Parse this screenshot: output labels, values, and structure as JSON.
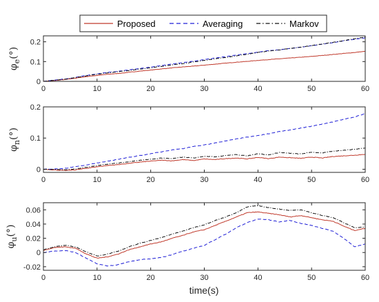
{
  "chart_data": {
    "type": "line",
    "legend": {
      "placement": "top-center",
      "entries": [
        {
          "name": "Proposed",
          "color": "#c0392b",
          "dash": "solid"
        },
        {
          "name": "Averaging",
          "color": "#1f1fd6",
          "dash": "dashed"
        },
        {
          "name": "Markov",
          "color": "#111111",
          "dash": "dashdot"
        }
      ]
    },
    "xlabel": "time(s)",
    "xlim": [
      0,
      60
    ],
    "xticks": [
      0,
      10,
      20,
      30,
      40,
      50,
      60
    ],
    "subplots": [
      {
        "ylabel_main": "φ",
        "ylabel_sub": "e",
        "ylabel_unit": "(°)",
        "ylim": [
          0,
          0.23
        ],
        "yticks": [
          0,
          0.1,
          0.2
        ],
        "ytick_labels": [
          "0",
          "0.1",
          "0.2"
        ],
        "series": [
          {
            "name": "Proposed",
            "x": [
              0,
              2,
              4,
              6,
              8,
              10,
              12,
              14,
              16,
              18,
              20,
              22,
              24,
              26,
              28,
              30,
              32,
              34,
              36,
              38,
              40,
              42,
              44,
              46,
              48,
              50,
              52,
              54,
              56,
              58,
              60
            ],
            "y": [
              0,
              0.004,
              0.009,
              0.016,
              0.024,
              0.03,
              0.036,
              0.04,
              0.046,
              0.052,
              0.057,
              0.063,
              0.068,
              0.073,
              0.077,
              0.082,
              0.087,
              0.092,
              0.097,
              0.101,
              0.106,
              0.11,
              0.114,
              0.118,
              0.122,
              0.126,
              0.131,
              0.136,
              0.141,
              0.146,
              0.152
            ]
          },
          {
            "name": "Averaging",
            "x": [
              0,
              2,
              4,
              6,
              8,
              10,
              12,
              14,
              16,
              18,
              20,
              22,
              24,
              26,
              28,
              30,
              32,
              34,
              36,
              38,
              40,
              42,
              44,
              46,
              48,
              50,
              52,
              54,
              56,
              58,
              60
            ],
            "y": [
              0,
              0.006,
              0.012,
              0.02,
              0.03,
              0.038,
              0.045,
              0.051,
              0.058,
              0.065,
              0.072,
              0.08,
              0.088,
              0.095,
              0.102,
              0.11,
              0.118,
              0.125,
              0.133,
              0.14,
              0.148,
              0.155,
              0.16,
              0.166,
              0.173,
              0.18,
              0.188,
              0.196,
              0.205,
              0.213,
              0.22
            ]
          },
          {
            "name": "Markov",
            "x": [
              0,
              2,
              4,
              6,
              8,
              10,
              12,
              14,
              16,
              18,
              20,
              22,
              24,
              26,
              28,
              30,
              32,
              34,
              36,
              38,
              40,
              42,
              44,
              46,
              48,
              50,
              52,
              54,
              56,
              58,
              60
            ],
            "y": [
              0,
              0.005,
              0.011,
              0.019,
              0.028,
              0.036,
              0.043,
              0.049,
              0.055,
              0.062,
              0.068,
              0.076,
              0.083,
              0.09,
              0.098,
              0.106,
              0.114,
              0.121,
              0.129,
              0.137,
              0.146,
              0.153,
              0.159,
              0.166,
              0.173,
              0.181,
              0.189,
              0.197,
              0.206,
              0.215,
              0.224
            ]
          }
        ]
      },
      {
        "ylabel_main": "φ",
        "ylabel_sub": "n",
        "ylabel_unit": "(°)",
        "ylim": [
          -0.01,
          0.2
        ],
        "yticks": [
          0,
          0.1,
          0.2
        ],
        "ytick_labels": [
          "0",
          "0.1",
          "0.2"
        ],
        "series": [
          {
            "name": "Proposed",
            "x": [
              0,
              2,
              4,
              6,
              8,
              10,
              12,
              14,
              16,
              18,
              20,
              22,
              24,
              26,
              28,
              30,
              32,
              34,
              36,
              38,
              40,
              42,
              44,
              46,
              48,
              50,
              52,
              54,
              56,
              58,
              60
            ],
            "y": [
              0,
              -0.002,
              -0.004,
              -0.002,
              0.003,
              0.008,
              0.012,
              0.015,
              0.019,
              0.023,
              0.026,
              0.029,
              0.027,
              0.031,
              0.028,
              0.033,
              0.031,
              0.034,
              0.036,
              0.033,
              0.038,
              0.034,
              0.039,
              0.037,
              0.035,
              0.039,
              0.036,
              0.041,
              0.043,
              0.045,
              0.048
            ]
          },
          {
            "name": "Averaging",
            "x": [
              0,
              2,
              4,
              6,
              8,
              10,
              12,
              14,
              16,
              18,
              20,
              22,
              24,
              26,
              28,
              30,
              32,
              34,
              36,
              38,
              40,
              42,
              44,
              46,
              48,
              50,
              52,
              54,
              56,
              58,
              60
            ],
            "y": [
              0,
              0.001,
              0.003,
              0.008,
              0.014,
              0.02,
              0.026,
              0.032,
              0.038,
              0.044,
              0.05,
              0.056,
              0.062,
              0.066,
              0.073,
              0.078,
              0.084,
              0.091,
              0.097,
              0.103,
              0.108,
              0.114,
              0.121,
              0.126,
              0.132,
              0.138,
              0.145,
              0.152,
              0.16,
              0.168,
              0.178
            ]
          },
          {
            "name": "Markov",
            "x": [
              0,
              2,
              4,
              6,
              8,
              10,
              12,
              14,
              16,
              18,
              20,
              22,
              24,
              26,
              28,
              30,
              32,
              34,
              36,
              38,
              40,
              42,
              44,
              46,
              48,
              50,
              52,
              54,
              56,
              58,
              60
            ],
            "y": [
              0,
              0,
              -0.002,
              0.001,
              0.006,
              0.012,
              0.016,
              0.02,
              0.024,
              0.029,
              0.032,
              0.036,
              0.034,
              0.039,
              0.036,
              0.042,
              0.04,
              0.044,
              0.047,
              0.043,
              0.05,
              0.046,
              0.054,
              0.051,
              0.049,
              0.055,
              0.052,
              0.058,
              0.061,
              0.064,
              0.068
            ]
          }
        ]
      },
      {
        "ylabel_main": "φ",
        "ylabel_sub": "u",
        "ylabel_unit": "(°)",
        "ylim": [
          -0.025,
          0.07
        ],
        "yticks": [
          -0.02,
          0,
          0.02,
          0.04,
          0.06
        ],
        "ytick_labels": [
          "-0.02",
          "0",
          "0.02",
          "0.04",
          "0.06"
        ],
        "series": [
          {
            "name": "Proposed",
            "x": [
              0,
              2,
              4,
              6,
              8,
              10,
              12,
              14,
              16,
              18,
              20,
              22,
              24,
              26,
              28,
              30,
              32,
              34,
              36,
              38,
              40,
              42,
              44,
              46,
              48,
              50,
              52,
              54,
              56,
              58,
              60
            ],
            "y": [
              0.003,
              0.007,
              0.008,
              0.006,
              -0.002,
              -0.008,
              -0.006,
              -0.002,
              0.004,
              0.008,
              0.012,
              0.015,
              0.02,
              0.024,
              0.029,
              0.032,
              0.038,
              0.044,
              0.05,
              0.056,
              0.057,
              0.055,
              0.053,
              0.05,
              0.052,
              0.049,
              0.046,
              0.044,
              0.037,
              0.031,
              0.034
            ]
          },
          {
            "name": "Averaging",
            "x": [
              0,
              2,
              4,
              6,
              8,
              10,
              12,
              14,
              16,
              18,
              20,
              22,
              24,
              26,
              28,
              30,
              32,
              34,
              36,
              38,
              40,
              42,
              44,
              46,
              48,
              50,
              52,
              54,
              56,
              58,
              60
            ],
            "y": [
              0,
              0.002,
              0.003,
              0,
              -0.008,
              -0.016,
              -0.019,
              -0.017,
              -0.013,
              -0.01,
              -0.009,
              -0.007,
              -0.003,
              0.002,
              0.006,
              0.01,
              0.018,
              0.026,
              0.035,
              0.042,
              0.047,
              0.046,
              0.043,
              0.045,
              0.041,
              0.038,
              0.034,
              0.03,
              0.02,
              0.008,
              0.012
            ]
          },
          {
            "name": "Markov",
            "x": [
              0,
              2,
              4,
              6,
              8,
              10,
              12,
              14,
              16,
              18,
              20,
              22,
              24,
              26,
              28,
              30,
              32,
              34,
              36,
              38,
              40,
              42,
              44,
              46,
              48,
              50,
              52,
              54,
              56,
              58,
              60
            ],
            "y": [
              0.004,
              0.008,
              0.01,
              0.008,
              0.001,
              -0.005,
              -0.002,
              0.002,
              0.008,
              0.013,
              0.017,
              0.021,
              0.026,
              0.03,
              0.035,
              0.039,
              0.045,
              0.05,
              0.056,
              0.064,
              0.066,
              0.063,
              0.061,
              0.059,
              0.06,
              0.056,
              0.052,
              0.049,
              0.042,
              0.035,
              0.036
            ]
          }
        ]
      }
    ]
  }
}
